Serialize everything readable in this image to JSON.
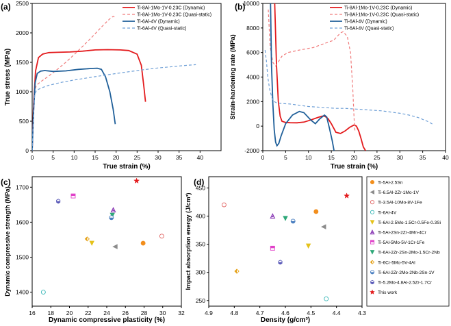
{
  "chart_data": [
    {
      "panel_label": "(a)",
      "type": "line",
      "xlabel": "True strain (%)",
      "ylabel": "True stress (MPa)",
      "xlim": [
        0,
        45
      ],
      "ylim": [
        0,
        2500
      ],
      "xticks": [
        0,
        5,
        10,
        15,
        20,
        25,
        30,
        35,
        40
      ],
      "yticks": [
        0,
        500,
        1000,
        1500,
        2000,
        2500
      ],
      "legend_position": "top-right",
      "series": [
        {
          "name": "Ti-8Al-1Mo-1V-0.23C (Dynamic)",
          "color": "#e31a1c",
          "dash": "solid",
          "x": [
            0,
            0.3,
            0.8,
            1.5,
            2.5,
            4,
            6,
            9,
            12,
            15,
            18,
            21,
            23,
            25,
            26,
            26.6,
            27
          ],
          "y": [
            0,
            700,
            1350,
            1580,
            1640,
            1665,
            1670,
            1675,
            1690,
            1710,
            1715,
            1710,
            1700,
            1640,
            1450,
            1100,
            830
          ]
        },
        {
          "name": "Ti-8Al-1Mo-1V-0.23C (Quasi-static)",
          "color": "#f07b7b",
          "dash": "dashed",
          "x": [
            0,
            0.3,
            0.6,
            1,
            2,
            4,
            6,
            8,
            10,
            12,
            14,
            16,
            17.5,
            18.5,
            19.3,
            19.6
          ],
          "y": [
            0,
            600,
            1000,
            1110,
            1170,
            1270,
            1380,
            1500,
            1630,
            1770,
            1910,
            2060,
            2170,
            2240,
            2280,
            2270
          ]
        },
        {
          "name": "Ti-6Al-4V (Dynamic)",
          "color": "#1f5f99",
          "dash": "solid",
          "x": [
            0,
            0.3,
            0.7,
            1.2,
            2,
            3,
            5,
            8,
            11,
            14,
            15.5,
            16.5,
            17.5,
            18.5,
            19.3,
            19.8
          ],
          "y": [
            0,
            600,
            1150,
            1310,
            1350,
            1360,
            1345,
            1355,
            1380,
            1395,
            1400,
            1380,
            1250,
            1000,
            700,
            450
          ]
        },
        {
          "name": "Ti-6Al-4V (Quasi-static)",
          "color": "#6e9fd6",
          "dash": "dashed",
          "x": [
            0,
            0.3,
            0.6,
            1,
            2,
            4,
            7,
            10,
            14,
            18,
            22,
            26,
            30,
            34,
            37,
            39
          ],
          "y": [
            0,
            550,
            950,
            1020,
            1060,
            1110,
            1160,
            1200,
            1245,
            1290,
            1330,
            1370,
            1405,
            1430,
            1450,
            1460
          ]
        }
      ]
    },
    {
      "panel_label": "(b)",
      "type": "line",
      "xlabel": "True strain (%)",
      "ylabel": "Strain-hardening rate (MPa)",
      "xlim": [
        0,
        40
      ],
      "ylim": [
        -2000,
        10000
      ],
      "xticks": [
        0,
        5,
        10,
        15,
        20,
        25,
        30,
        35,
        40
      ],
      "yticks": [
        -2000,
        0,
        2000,
        4000,
        6000,
        8000,
        10000
      ],
      "legend_position": "top-right",
      "series": [
        {
          "name": "Ti-8Al-1Mo-1V-0.23C (Dynamic)",
          "color": "#e31a1c",
          "dash": "solid",
          "x": [
            2.6,
            3.0,
            3.4,
            3.8,
            4.2,
            5,
            6,
            7.5,
            9,
            10.5,
            12,
            13,
            13.6,
            14.3,
            15,
            16,
            17,
            18,
            19,
            20,
            20.5,
            21,
            21.5,
            22,
            22.5
          ],
          "y": [
            10000,
            5000,
            2000,
            800,
            400,
            300,
            280,
            270,
            330,
            500,
            700,
            820,
            800,
            600,
            200,
            -500,
            -600,
            -400,
            -100,
            100,
            0,
            -400,
            -1000,
            -1700,
            -2000
          ]
        },
        {
          "name": "Ti-8Al-1Mo-1V-0.23C (Quasi-static)",
          "color": "#f07b7b",
          "dash": "dashed",
          "x": [
            1.2,
            1.6,
            2.2,
            2.8,
            3.5,
            4.2,
            5.5,
            8,
            11,
            14,
            15.5,
            17,
            17.6,
            18.5,
            19.2,
            19.7,
            20,
            20.2
          ],
          "y": [
            9500,
            6500,
            5200,
            4900,
            5300,
            5700,
            6000,
            6200,
            6400,
            6800,
            7000,
            7600,
            7700,
            7300,
            6000,
            3000,
            500,
            -500
          ]
        },
        {
          "name": "Ti-6Al-4V (Dynamic)",
          "color": "#1f5f99",
          "dash": "solid",
          "x": [
            1.7,
            1.9,
            2.2,
            2.5,
            2.8,
            3.1,
            3.5,
            4,
            5,
            6.5,
            8,
            9,
            10.5,
            11.5,
            12.5,
            13.5,
            14,
            14.6,
            15.2,
            15.6
          ],
          "y": [
            10000,
            5000,
            1800,
            -300,
            -1300,
            -1600,
            -1400,
            -800,
            200,
            900,
            1200,
            1100,
            500,
            200,
            600,
            900,
            750,
            -200,
            -1200,
            -2000
          ]
        },
        {
          "name": "Ti-6Al-4V (Quasi-static)",
          "color": "#6e9fd6",
          "dash": "dashed",
          "x": [
            0.5,
            0.8,
            1.1,
            1.5,
            2,
            2.5,
            3,
            4,
            6,
            8,
            10,
            12,
            14,
            16,
            18,
            20,
            22,
            24,
            26,
            28,
            30,
            32,
            34,
            36,
            37.5
          ],
          "y": [
            6200,
            5300,
            4000,
            3000,
            2300,
            2000,
            1900,
            1850,
            1800,
            1700,
            1600,
            1550,
            1500,
            1450,
            1450,
            1400,
            1350,
            1300,
            1250,
            1150,
            1050,
            900,
            700,
            400,
            100
          ]
        }
      ]
    },
    {
      "panel_label": "(c)",
      "type": "scatter",
      "xlabel": "Dynamic compressive plasticity (%)",
      "ylabel": "Dynamic compressive strength (MPa)",
      "xlim": [
        16,
        32
      ],
      "ylim": [
        1360,
        1730
      ],
      "xticks": [
        16,
        18,
        20,
        22,
        24,
        26,
        28,
        30,
        32
      ],
      "yticks": [
        1400,
        1500,
        1600,
        1700
      ],
      "points": [
        {
          "series": "Ti-5Al-2.5Sn",
          "x": 27.9,
          "y": 1540
        },
        {
          "series": "Ti-6.5Al-2Zr-1Mo-1V",
          "x": 24.9,
          "y": 1530
        },
        {
          "series": "Ti-3.5Al-10Mo-8V-1Fe",
          "x": 29.9,
          "y": 1560
        },
        {
          "series": "Ti-6Al-4V",
          "x": 17.2,
          "y": 1400
        },
        {
          "series": "Ti-6Al-2.5Mo-1.5Cr-0.5Fe-0.3Si",
          "x": 22.4,
          "y": 1540
        },
        {
          "series": "Ti-5Al-2Sn-2Zr-4Mn-4Cr",
          "x": 24.7,
          "y": 1635
        },
        {
          "series": "Ti-5Al-5Mo-5V-1Cr-1Fe",
          "x": 20.4,
          "y": 1675
        },
        {
          "series": "Ti-6Al-2Zr-2Sn-2Mo-1.5Cr-2Nb",
          "x": 24.6,
          "y": 1620
        },
        {
          "series": "Ti-6Cr-5Mo-5V-4Al",
          "x": 21.9,
          "y": 1552
        },
        {
          "series": "Ti-6Al-2Zr-2Mo-2Nb-2Sn-1V",
          "x": 24.5,
          "y": 1613
        },
        {
          "series": "Ti-5.2Mo-4.8Al-2.5Zr-1.7Cr",
          "x": 18.8,
          "y": 1660
        },
        {
          "series": "This work",
          "x": 27.2,
          "y": 1718
        }
      ]
    },
    {
      "panel_label": "(d)",
      "type": "scatter",
      "xlabel": "Density (g/cm³)",
      "ylabel": "Impact absorption energy (J/cm³)",
      "xlim": [
        4.9,
        4.3
      ],
      "ylim": [
        240,
        470
      ],
      "xticks": [
        4.9,
        4.8,
        4.7,
        4.6,
        4.5,
        4.4,
        4.3
      ],
      "yticks": [
        250,
        300,
        350,
        400,
        450
      ],
      "legend_position": "right",
      "points": [
        {
          "series": "Ti-5Al-2.5Sn",
          "x": 4.48,
          "y": 408
        },
        {
          "series": "Ti-6.5Al-2Zr-1Mo-1V",
          "x": 4.45,
          "y": 381
        },
        {
          "series": "Ti-3.5Al-10Mo-8V-1Fe",
          "x": 4.84,
          "y": 420
        },
        {
          "series": "Ti-6Al-4V",
          "x": 4.44,
          "y": 253
        },
        {
          "series": "Ti-6Al-2.5Mo-1.5Cr-0.5Fe-0.3Si",
          "x": 4.51,
          "y": 347
        },
        {
          "series": "Ti-5Al-2Sn-2Zr-4Mn-4Cr",
          "x": 4.65,
          "y": 400
        },
        {
          "series": "Ti-5Al-5Mo-5V-1Cr-1Fe",
          "x": 4.65,
          "y": 343
        },
        {
          "series": "Ti-6Al-2Zr-2Sn-2Mo-1.5Cr-2Nb",
          "x": 4.6,
          "y": 396
        },
        {
          "series": "Ti-6Cr-5Mo-5V-4Al",
          "x": 4.79,
          "y": 302
        },
        {
          "series": "Ti-6Al-2Zr-2Mo-2Nb-2Sn-1V",
          "x": 4.57,
          "y": 391
        },
        {
          "series": "Ti-5.2Mo-4.8Al-2.5Zr-1.7Cr",
          "x": 4.62,
          "y": 318
        },
        {
          "series": "This work",
          "x": 4.36,
          "y": 436
        }
      ]
    }
  ],
  "scatter_legend": [
    {
      "name": "Ti-5Al-2.5Sn",
      "marker": "circle-filled",
      "color": "#f28e1c"
    },
    {
      "name": "Ti-6.5Al-2Zr-1Mo-1V",
      "marker": "triangle-left",
      "color": "#8c8c8c"
    },
    {
      "name": "Ti-3.5Al-10Mo-8V-1Fe",
      "marker": "circle-open",
      "color": "#e0605e"
    },
    {
      "name": "Ti-6Al-4V",
      "marker": "circle-open",
      "color": "#35b6b6"
    },
    {
      "name": "Ti-6Al-2.5Mo-1.5Cr-0.5Fe-0.3Si",
      "marker": "triangle-down",
      "color": "#e5c21a"
    },
    {
      "name": "Ti-5Al-2Sn-2Zr-4Mn-4Cr",
      "marker": "triangle-up-open",
      "color": "#8a3ab5"
    },
    {
      "name": "Ti-5Al-5Mo-5V-1Cr-1Fe",
      "marker": "square-half",
      "color": "#e040c8"
    },
    {
      "name": "Ti-6Al-2Zr-2Sn-2Mo-1.5Cr-2Nb",
      "marker": "triangle-down",
      "color": "#2ea878"
    },
    {
      "name": "Ti-6Cr-5Mo-5V-4Al",
      "marker": "diamond-half",
      "color": "#e5a21a"
    },
    {
      "name": "Ti-6Al-2Zr-2Mo-2Nb-2Sn-1V",
      "marker": "circle-half",
      "color": "#4a7fc0"
    },
    {
      "name": "Ti-5.2Mo-4.8Al-2.5Zr-1.7Cr",
      "marker": "hexagon-half",
      "color": "#5a5ab8"
    },
    {
      "name": "This work",
      "marker": "star",
      "color": "#e31a1c"
    }
  ]
}
